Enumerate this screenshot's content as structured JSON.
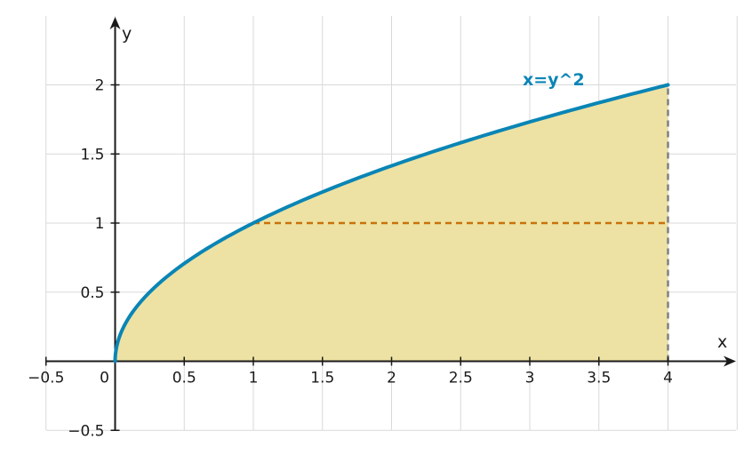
{
  "chart_data": {
    "type": "area",
    "xlabel": "x",
    "ylabel": "y",
    "xlim": [
      -0.5,
      4.5
    ],
    "ylim": [
      -0.5,
      2.5
    ],
    "grid": true,
    "x_ticks": [
      {
        "value": -0.5,
        "label": "−0.5"
      },
      {
        "value": 0,
        "label": "0"
      },
      {
        "value": 0.5,
        "label": "0.5"
      },
      {
        "value": 1,
        "label": "1"
      },
      {
        "value": 1.5,
        "label": "1.5"
      },
      {
        "value": 2,
        "label": "2"
      },
      {
        "value": 2.5,
        "label": "2.5"
      },
      {
        "value": 3,
        "label": "3"
      },
      {
        "value": 3.5,
        "label": "3.5"
      },
      {
        "value": 4,
        "label": "4"
      }
    ],
    "y_ticks": [
      {
        "value": -0.5,
        "label": "−0.5"
      },
      {
        "value": 0.5,
        "label": "0.5"
      },
      {
        "value": 1,
        "label": "1"
      },
      {
        "value": 1.5,
        "label": "1.5"
      },
      {
        "value": 2,
        "label": "2"
      }
    ],
    "curve": {
      "label": "x=y^2",
      "color": "#0a85b5",
      "y_range": [
        0,
        2
      ]
    },
    "shaded_region": {
      "description_bounds": {
        "y_min": 0,
        "y_max": 2,
        "x_max": 4
      },
      "color": "#ede2a3"
    },
    "reference_lines": [
      {
        "from": [
          1,
          1
        ],
        "to": [
          4,
          1
        ],
        "color": "#c9720a",
        "style": "dashed"
      },
      {
        "from": [
          4,
          0
        ],
        "to": [
          4,
          2
        ],
        "color": "#808080",
        "style": "dashed"
      }
    ]
  }
}
